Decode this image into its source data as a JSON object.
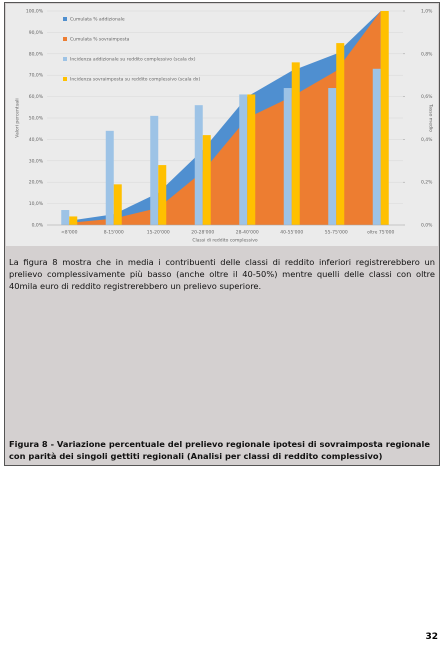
{
  "chart_data": {
    "type": "area-bar",
    "categories": [
      "<8'000",
      "8-15'000",
      "15-20'000",
      "20-28'000",
      "28-40'000",
      "40-55'000",
      "55-75'000",
      "oltre 75'000"
    ],
    "x_label": "Classi di reddito complessivo",
    "y_label": "Valori percentuali",
    "y2_label": "Tasso medio",
    "series": [
      {
        "name": "Cumulata % addizionale",
        "kind": "area",
        "color": "#4f8fd0",
        "values": [
          2,
          5,
          15,
          35,
          60,
          72,
          80,
          100
        ]
      },
      {
        "name": "Cumulata % sovraimposta",
        "kind": "area",
        "color": "#ed7d31",
        "values": [
          1,
          3,
          8,
          25,
          50,
          60,
          72,
          100
        ]
      },
      {
        "name": "Incidenza addizionale su reddito complessivo (scala dx)",
        "kind": "bar",
        "axis": "y2",
        "color": "#9dc3e6",
        "values": [
          0.07,
          0.44,
          0.51,
          0.56,
          0.61,
          0.64,
          0.64,
          0.73
        ]
      },
      {
        "name": "Incidenza sovraimposta su reddito complessivo (scala dx)",
        "kind": "bar",
        "axis": "y2",
        "color": "#ffc000",
        "values": [
          0.04,
          0.19,
          0.28,
          0.42,
          0.61,
          0.76,
          0.85,
          1.0
        ]
      }
    ],
    "ylim": [
      0,
      100
    ],
    "yticks": [
      {
        "value": 0,
        "label": "0,0%"
      },
      {
        "value": 10,
        "label": "10,0%"
      },
      {
        "value": 20,
        "label": "20,0%"
      },
      {
        "value": 30,
        "label": "30,0%"
      },
      {
        "value": 40,
        "label": "40,0%"
      },
      {
        "value": 50,
        "label": "50,0%"
      },
      {
        "value": 60,
        "label": "60,0%"
      },
      {
        "value": 70,
        "label": "70,0%"
      },
      {
        "value": 80,
        "label": "80,0%"
      },
      {
        "value": 90,
        "label": "90,0%"
      },
      {
        "value": 100,
        "label": "100,0%"
      }
    ],
    "y2lim": [
      0,
      1.0
    ],
    "y2ticks": [
      {
        "value": 0,
        "label": "0,0%"
      },
      {
        "value": 0.2,
        "label": "0,2%"
      },
      {
        "value": 0.4,
        "label": "0,4%"
      },
      {
        "value": 0.6,
        "label": "0,6%"
      },
      {
        "value": 0.8,
        "label": "0,8%"
      },
      {
        "value": 1.0,
        "label": "1,0%"
      }
    ]
  },
  "body_text": "La figura 8 mostra che in media i contribuenti delle classi di reddito inferiori registrerebbero un prelievo complessivamente più basso (anche oltre il 40-50%) mentre quelli delle classi con oltre 40mila euro di reddito registrerebbero un prelievo superiore.",
  "caption": "Figura 8 - Variazione percentuale del prelievo regionale ipotesi di sovraimposta regionale con parità dei singoli gettiti regionali (Analisi per classi di reddito complessivo)",
  "page_number": "32"
}
